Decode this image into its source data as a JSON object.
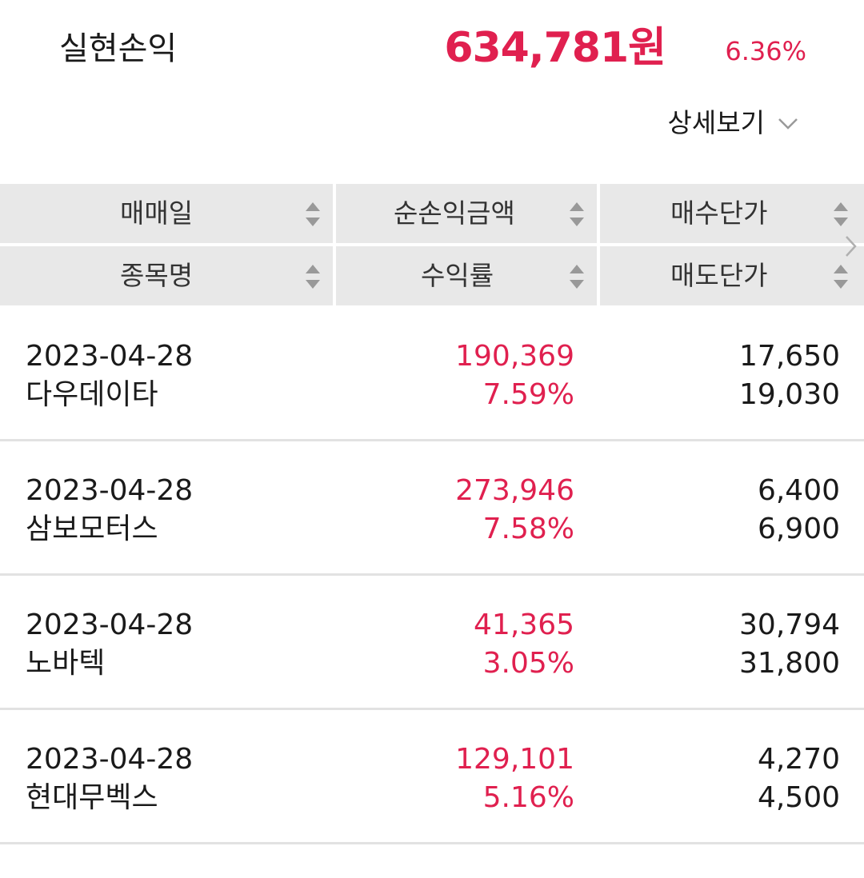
{
  "summary": {
    "label": "실현손익",
    "amount": "634,781원",
    "rate": "6.36%",
    "detail_label": "상세보기"
  },
  "table_header": {
    "row1": [
      "매매일",
      "순손익금액",
      "매수단가"
    ],
    "row2": [
      "종목명",
      "수익률",
      "매도단가"
    ]
  },
  "rows": [
    {
      "date": "2023-04-28",
      "name": "다우데이타",
      "profit": "190,369",
      "rate": "7.59%",
      "buy_price": "17,650",
      "sell_price": "19,030"
    },
    {
      "date": "2023-04-28",
      "name": "삼보모터스",
      "profit": "273,946",
      "rate": "7.58%",
      "buy_price": "6,400",
      "sell_price": "6,900"
    },
    {
      "date": "2023-04-28",
      "name": "노바텍",
      "profit": "41,365",
      "rate": "3.05%",
      "buy_price": "30,794",
      "sell_price": "31,800"
    },
    {
      "date": "2023-04-28",
      "name": "현대무벡스",
      "profit": "129,101",
      "rate": "5.16%",
      "buy_price": "4,270",
      "sell_price": "4,500"
    }
  ],
  "colors": {
    "accent_red": "#e0204f",
    "header_bg": "#e8e8e8",
    "divider": "#e2e2e2"
  },
  "icons": {
    "detail_toggle": "chevron-down-icon",
    "sort": "sort-icon",
    "scroll": "chevron-right-icon"
  }
}
